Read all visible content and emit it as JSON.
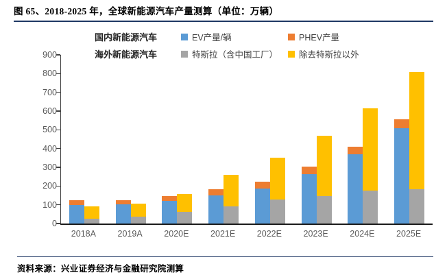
{
  "figure": {
    "title": "图 65、2018-2025 年，全球新能源汽车产量测算（单位：万辆）",
    "source": "资料来源：兴业证券经济与金融研究院测算"
  },
  "legend": {
    "rows": [
      {
        "group_label": "国内新能源汽车",
        "items": [
          {
            "label": "EV产量/辆",
            "color": "#5B9BD5"
          },
          {
            "label": "PHEV产量",
            "color": "#ED7D31"
          }
        ]
      },
      {
        "group_label": "海外新能源汽车",
        "items": [
          {
            "label": "特斯拉（含中国工厂）",
            "color": "#A5A5A5"
          },
          {
            "label": "除去特斯拉以外",
            "color": "#FFC000"
          }
        ]
      }
    ]
  },
  "chart_data": {
    "type": "bar",
    "subtype": "grouped-stacked",
    "title": "图 65、2018-2025 年，全球新能源汽车产量测算（单位：万辆）",
    "unit": "万辆",
    "xlabel": "",
    "ylabel": "",
    "ylim": [
      0,
      900
    ],
    "yticks": [
      0,
      100,
      200,
      300,
      400,
      500,
      600,
      700,
      800,
      900
    ],
    "grid": false,
    "legend_position": "top",
    "categories": [
      "2018A",
      "2019A",
      "2020E",
      "2021E",
      "2022E",
      "2023E",
      "2024E",
      "2025E"
    ],
    "bar_groups": [
      {
        "name": "国内新能源汽车",
        "stack": [
          {
            "name": "EV产量/辆",
            "color": "#5B9BD5",
            "values": [
              100,
              102,
              121,
              151,
              187,
              262,
              370,
              510
            ]
          },
          {
            "name": "PHEV产量",
            "color": "#ED7D31",
            "values": [
              26,
              22,
              27,
              31,
              35,
              40,
              41,
              46
            ]
          }
        ],
        "stack_totals": [
          126,
          124,
          148,
          182,
          222,
          302,
          411,
          556
        ]
      },
      {
        "name": "海外新能源汽车",
        "stack": [
          {
            "name": "特斯拉（含中国工厂）",
            "color": "#A5A5A5",
            "values": [
              25,
              37,
              62,
              93,
              127,
              147,
              175,
              183
            ]
          },
          {
            "name": "除去特斯拉以外",
            "color": "#FFC000",
            "values": [
              66,
              68,
              97,
              168,
              223,
              320,
              439,
              627
            ]
          }
        ],
        "stack_totals": [
          91,
          105,
          159,
          261,
          350,
          467,
          614,
          810
        ]
      }
    ]
  },
  "colors": {
    "ev_blue": "#5B9BD5",
    "phev_orange": "#ED7D31",
    "tesla_gray": "#A5A5A5",
    "ex_tesla_yellow": "#FFC000",
    "rule_navy": "#1F3864",
    "axis_dark": "#1A1A1A",
    "tick_label_gray": "#595959"
  }
}
